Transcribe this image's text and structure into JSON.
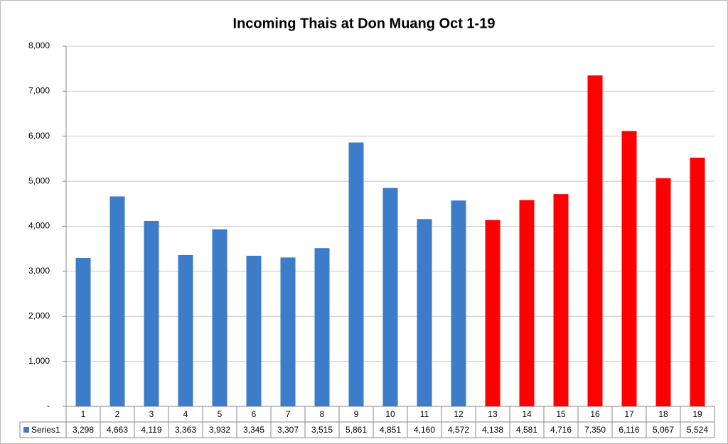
{
  "chart_data": {
    "type": "bar",
    "title": "Incoming Thais at Don Muang Oct 1-19",
    "categories": [
      "1",
      "2",
      "3",
      "4",
      "5",
      "6",
      "7",
      "8",
      "9",
      "10",
      "11",
      "12",
      "13",
      "14",
      "15",
      "16",
      "17",
      "18",
      "19"
    ],
    "series": [
      {
        "name": "Series1",
        "color": "#3d7cc9",
        "point_colors": [
          "#3d7cc9",
          "#3d7cc9",
          "#3d7cc9",
          "#3d7cc9",
          "#3d7cc9",
          "#3d7cc9",
          "#3d7cc9",
          "#3d7cc9",
          "#3d7cc9",
          "#3d7cc9",
          "#3d7cc9",
          "#3d7cc9",
          "#ff0000",
          "#ff0000",
          "#ff0000",
          "#ff0000",
          "#ff0000",
          "#ff0000",
          "#ff0000"
        ],
        "values": [
          3298,
          4663,
          4119,
          3363,
          3932,
          3345,
          3307,
          3515,
          5861,
          4851,
          4160,
          4572,
          4138,
          4581,
          4716,
          7350,
          6116,
          5067,
          5524
        ],
        "value_labels": [
          "3,298",
          "4,663",
          "4,119",
          "3,363",
          "3,932",
          "3,345",
          "3,307",
          "3,515",
          "5,861",
          "4,851",
          "4,160",
          "4,572",
          "4,138",
          "4,581",
          "4,716",
          "7,350",
          "6,116",
          "5,067",
          "5,524"
        ]
      }
    ],
    "ylim": [
      0,
      8000
    ],
    "yticks": [
      {
        "value": 0,
        "label": "-"
      },
      {
        "value": 1000,
        "label": "1,000"
      },
      {
        "value": 2000,
        "label": "2,000"
      },
      {
        "value": 3000,
        "label": "3,000"
      },
      {
        "value": 4000,
        "label": "4,000"
      },
      {
        "value": 5000,
        "label": "5,000"
      },
      {
        "value": 6000,
        "label": "6,000"
      },
      {
        "value": 7000,
        "label": "7,000"
      },
      {
        "value": 8000,
        "label": "8,000"
      }
    ],
    "grid": true
  }
}
